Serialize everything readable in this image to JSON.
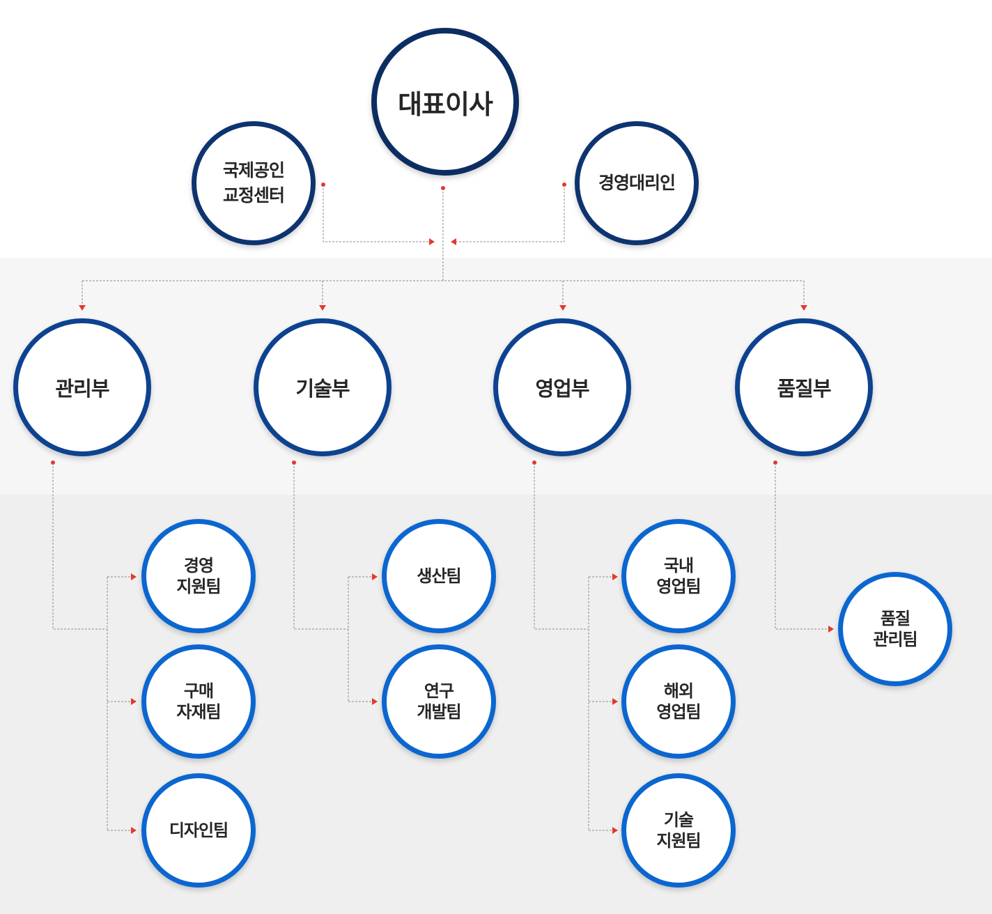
{
  "ceo": "대표이사",
  "advisors": {
    "left": "국제공인\n교정센터",
    "right": "경영대리인"
  },
  "departments": [
    {
      "name": "관리부",
      "teams": [
        "경영\n지원팀",
        "구매\n자재팀",
        "디자인팀"
      ]
    },
    {
      "name": "기술부",
      "teams": [
        "생산팀",
        "연구\n개발팀"
      ]
    },
    {
      "name": "영업부",
      "teams": [
        "국내\n영업팀",
        "해외\n영업팀",
        "기술\n지원팀"
      ]
    },
    {
      "name": "품질부",
      "teams": [
        "품질\n관리팀"
      ]
    }
  ],
  "colors": {
    "ceo_border": "#0c2d62",
    "department_border": "#0d4290",
    "team_border": "#0b66d0",
    "connector_accent": "#e03a2f"
  }
}
